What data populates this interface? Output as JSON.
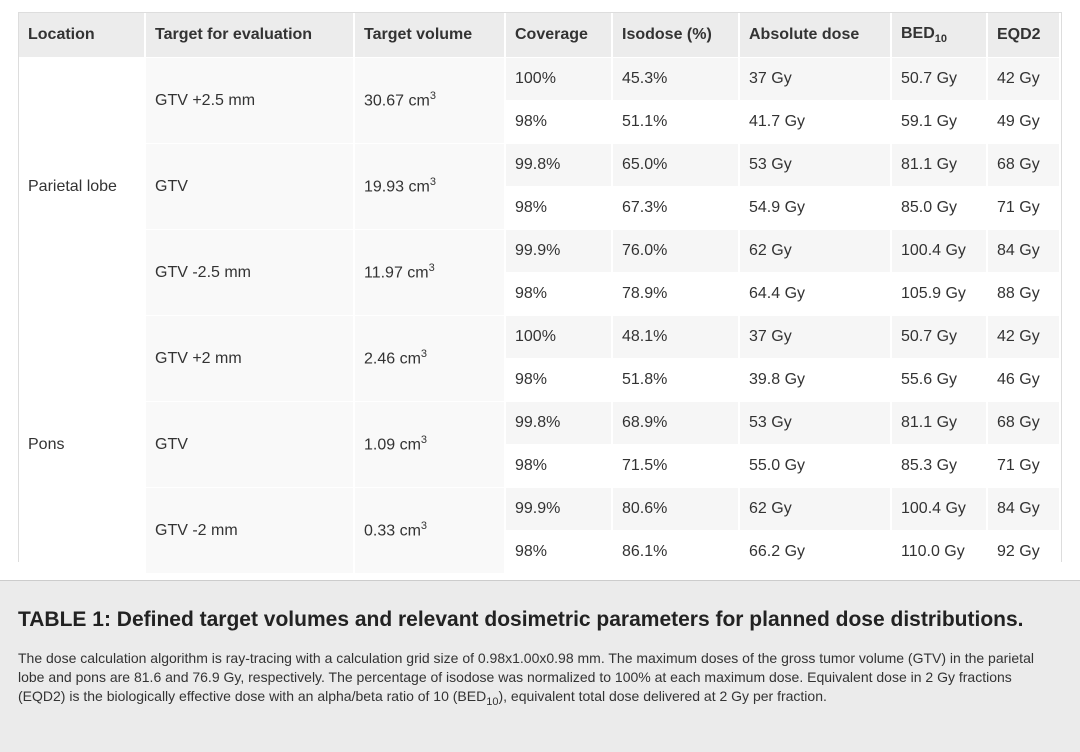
{
  "table": {
    "headers": [
      "Location",
      "Target for evaluation",
      "Target volume",
      "Coverage",
      "Isodose (%)",
      "Absolute dose",
      "BED",
      "EQD2"
    ],
    "bed_subscript": "10",
    "groups": [
      {
        "location": "Parietal lobe",
        "targets": [
          {
            "name": "GTV +2.5 mm",
            "volume": "30.67 cm",
            "volume_sup": "3",
            "rows": [
              [
                "100%",
                "45.3%",
                "37 Gy",
                "50.7 Gy",
                "42 Gy"
              ],
              [
                "98%",
                "51.1%",
                "41.7 Gy",
                "59.1 Gy",
                "49 Gy"
              ]
            ]
          },
          {
            "name": "GTV",
            "volume": "19.93 cm",
            "volume_sup": "3",
            "rows": [
              [
                "99.8%",
                "65.0%",
                "53 Gy",
                "81.1 Gy",
                "68 Gy"
              ],
              [
                "98%",
                "67.3%",
                "54.9 Gy",
                "85.0 Gy",
                "71 Gy"
              ]
            ]
          },
          {
            "name": "GTV -2.5 mm",
            "volume": "11.97 cm",
            "volume_sup": "3",
            "rows": [
              [
                "99.9%",
                "76.0%",
                "62 Gy",
                "100.4 Gy",
                "84 Gy"
              ],
              [
                "98%",
                "78.9%",
                "64.4 Gy",
                "105.9 Gy",
                "88 Gy"
              ]
            ]
          }
        ]
      },
      {
        "location": "Pons",
        "targets": [
          {
            "name": "GTV +2 mm",
            "volume": "2.46 cm",
            "volume_sup": "3",
            "rows": [
              [
                "100%",
                "48.1%",
                "37 Gy",
                "50.7 Gy",
                "42 Gy"
              ],
              [
                "98%",
                "51.8%",
                "39.8 Gy",
                "55.6 Gy",
                "46 Gy"
              ]
            ]
          },
          {
            "name": "GTV",
            "volume": "1.09 cm",
            "volume_sup": "3",
            "rows": [
              [
                "99.8%",
                "68.9%",
                "53 Gy",
                "81.1 Gy",
                "68 Gy"
              ],
              [
                "98%",
                "71.5%",
                "55.0 Gy",
                "85.3 Gy",
                "71 Gy"
              ]
            ]
          },
          {
            "name": "GTV -2 mm",
            "volume": "0.33 cm",
            "volume_sup": "3",
            "rows": [
              [
                "99.9%",
                "80.6%",
                "62 Gy",
                "100.4 Gy",
                "84 Gy"
              ],
              [
                "98%",
                "86.1%",
                "66.2 Gy",
                "110.0 Gy",
                "92 Gy"
              ]
            ]
          }
        ]
      }
    ]
  },
  "caption": {
    "title": "TABLE 1: Defined target volumes and relevant dosimetric parameters for planned dose distributions.",
    "text_before": "The dose calculation algorithm is ray-tracing with a calculation grid size of 0.98x1.00x0.98 mm. The maximum doses of the gross tumor volume (GTV) in the parietal lobe and pons are 81.6 and 76.9 Gy, respectively. The percentage of isodose was normalized to 100% at each maximum dose. Equivalent dose in 2 Gy fractions (EQD2) is the biologically effective dose with an alpha/beta ratio of 10 (BED",
    "text_sub": "10",
    "text_after": "), equivalent total dose delivered at 2 Gy per fraction."
  }
}
